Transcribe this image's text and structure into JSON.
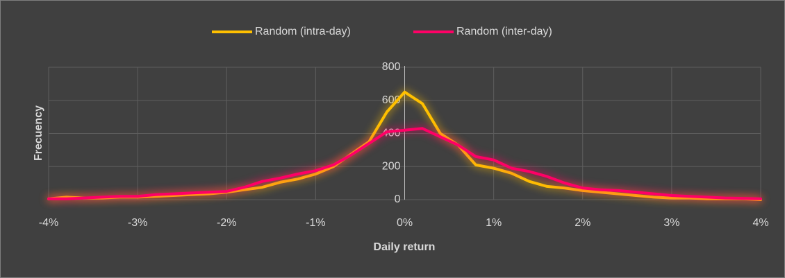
{
  "chart_data": {
    "type": "line",
    "x_label": "Daily return",
    "y_label": "Frecuency",
    "x": [
      -4,
      -3.8,
      -3.6,
      -3.4,
      -3.2,
      -3,
      -2.8,
      -2.6,
      -2.4,
      -2.2,
      -2,
      -1.8,
      -1.6,
      -1.4,
      -1.2,
      -1,
      -0.8,
      -0.6,
      -0.4,
      -0.2,
      0,
      0.2,
      0.4,
      0.6,
      0.8,
      1,
      1.2,
      1.4,
      1.6,
      1.8,
      2,
      2.2,
      2.4,
      2.6,
      2.8,
      3,
      3.2,
      3.4,
      3.6,
      3.8,
      4
    ],
    "series": [
      {
        "name": "Random (intra-day)",
        "color": "#ffc000",
        "values": [
          5,
          15,
          10,
          10,
          15,
          15,
          20,
          25,
          30,
          35,
          45,
          60,
          75,
          105,
          125,
          155,
          200,
          275,
          350,
          530,
          650,
          580,
          400,
          330,
          210,
          190,
          160,
          110,
          80,
          70,
          55,
          45,
          35,
          25,
          15,
          10,
          10,
          5,
          5,
          5,
          0
        ]
      },
      {
        "name": "Random (inter-day)",
        "color": "#ff0066",
        "values": [
          5,
          5,
          10,
          15,
          20,
          20,
          30,
          35,
          40,
          45,
          50,
          75,
          110,
          130,
          155,
          175,
          210,
          270,
          340,
          410,
          420,
          430,
          380,
          330,
          260,
          240,
          190,
          170,
          140,
          100,
          70,
          60,
          55,
          45,
          35,
          25,
          20,
          15,
          10,
          8,
          5
        ]
      }
    ],
    "xlim": [
      -4,
      4
    ],
    "xticks": [
      {
        "value": -4,
        "label": "-4%"
      },
      {
        "value": -3,
        "label": "-3%"
      },
      {
        "value": -2,
        "label": "-2%"
      },
      {
        "value": -1,
        "label": "-1%"
      },
      {
        "value": 0,
        "label": "0%"
      },
      {
        "value": 1,
        "label": "1%"
      },
      {
        "value": 2,
        "label": "2%"
      },
      {
        "value": 3,
        "label": "3%"
      },
      {
        "value": 4,
        "label": "4%"
      }
    ],
    "ylim": [
      0,
      800
    ],
    "yticks": [
      0,
      200,
      400,
      600,
      800
    ],
    "grid": true,
    "legend": "top"
  }
}
